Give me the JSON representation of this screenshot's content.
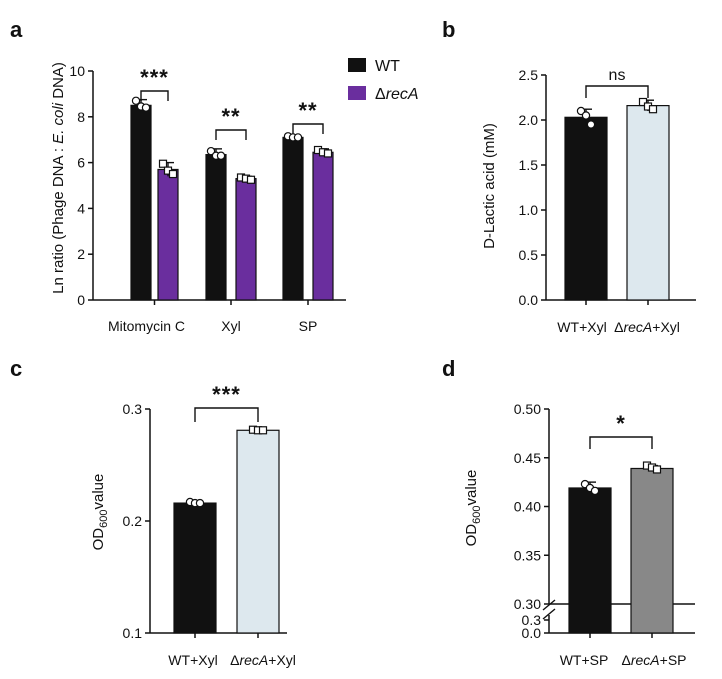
{
  "panel_labels": [
    "a",
    "b",
    "c",
    "d"
  ],
  "legend": {
    "wt": "WT",
    "delta": "Δ",
    "recA": "recA"
  },
  "cat_parts": {
    "wt_xyl": "WT+Xyl",
    "delta_xyl_suffix": "+Xyl",
    "wt_sp": "WT+SP",
    "delta_sp_suffix": "+SP"
  },
  "ylabel_parts": {
    "a_pre": "Ln ratio (Phage DNA : ",
    "a_ital": "E. coli",
    "a_post": " DNA)",
    "b": "D-Lactic acid (mM)",
    "od_pre": "OD",
    "od_sub": "600",
    "od_post": "value"
  },
  "colors": {
    "wt": "#111111",
    "recA": "#6a2e9e",
    "light": "#dde8ee",
    "gray": "#888888",
    "axis": "#111111"
  },
  "chart_data": [
    {
      "panel": "a",
      "type": "bar",
      "categories": [
        "Mitomycin C",
        "Xyl",
        "SP"
      ],
      "series": [
        {
          "name": "WT",
          "values": [
            8.5,
            6.35,
            7.1
          ],
          "errors": [
            0.25,
            0.25,
            0.1
          ],
          "points": [
            [
              8.7,
              8.45,
              8.4
            ],
            [
              6.5,
              6.3,
              6.3
            ],
            [
              7.15,
              7.1,
              7.1
            ]
          ]
        },
        {
          "name": "ΔrecA",
          "values": [
            5.7,
            5.3,
            6.45
          ],
          "errors": [
            0.3,
            0.1,
            0.15
          ],
          "points": [
            [
              5.95,
              5.65,
              5.5
            ],
            [
              5.35,
              5.3,
              5.25
            ],
            [
              6.55,
              6.45,
              6.4
            ]
          ]
        }
      ],
      "significance": [
        "***",
        "**",
        "**"
      ],
      "ylim": [
        0,
        10
      ],
      "yticks": [
        "0",
        "2",
        "4",
        "6",
        "8",
        "10"
      ],
      "legend_position": "top-right"
    },
    {
      "panel": "b",
      "type": "bar",
      "categories": [
        "WT+Xyl",
        "ΔrecA+Xyl"
      ],
      "values": [
        2.03,
        2.16
      ],
      "errors": [
        0.09,
        0.06
      ],
      "points": [
        [
          2.1,
          2.05,
          1.95
        ],
        [
          2.2,
          2.15,
          2.12
        ]
      ],
      "significance": "ns",
      "ylabel": "D-Lactic acid (mM)",
      "ylim": [
        0,
        2.5
      ],
      "yticks": [
        "0.0",
        "0.5",
        "1.0",
        "1.5",
        "2.0",
        "2.5"
      ]
    },
    {
      "panel": "c",
      "type": "bar",
      "categories": [
        "WT+Xyl",
        "ΔrecA+Xyl"
      ],
      "values": [
        0.216,
        0.281
      ],
      "errors": [
        0.001,
        0.001
      ],
      "points": [
        [
          0.217,
          0.216,
          0.216
        ],
        [
          0.2815,
          0.281,
          0.281
        ]
      ],
      "significance": "***",
      "ylabel": "OD600value",
      "ylim": [
        0.1,
        0.3
      ],
      "yticks": [
        "0.1",
        "0.2",
        "0.3"
      ]
    },
    {
      "panel": "d",
      "type": "bar",
      "categories": [
        "WT+SP",
        "ΔrecA+SP"
      ],
      "values": [
        0.419,
        0.439
      ],
      "errors": [
        0.006,
        0.003
      ],
      "points": [
        [
          0.423,
          0.419,
          0.416
        ],
        [
          0.442,
          0.44,
          0.438
        ]
      ],
      "significance": "*",
      "ylabel": "OD600value",
      "ylim": [
        0.3,
        0.5
      ],
      "axis_break": [
        0.0,
        0.3
      ],
      "yticks": [
        "0.30",
        "0.35",
        "0.40",
        "0.45",
        "0.50"
      ],
      "yticks_lower": [
        "0.3",
        "0.0"
      ]
    }
  ]
}
